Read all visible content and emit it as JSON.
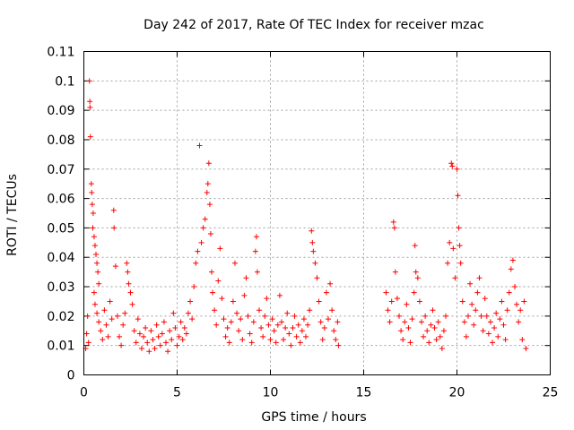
{
  "chart_data": {
    "type": "scatter",
    "title": "Day 242 of 2017, Rate Of TEC Index for receiver mzac",
    "xlabel": "GPS time / hours",
    "ylabel": "ROTI / TECUs",
    "xlim": [
      0,
      25
    ],
    "ylim": [
      0,
      0.11
    ],
    "xticks": [
      0,
      5,
      10,
      15,
      20,
      25
    ],
    "xtick_labels": [
      "0",
      "5",
      "10",
      "15",
      "20",
      "25"
    ],
    "yticks": [
      0,
      0.01,
      0.02,
      0.03,
      0.04,
      0.05,
      0.06,
      0.07,
      0.08,
      0.09,
      0.1,
      0.11
    ],
    "ytick_labels": [
      "0",
      "0.01",
      "0.02",
      "0.03",
      "0.04",
      "0.05",
      "0.06",
      "0.07",
      "0.08",
      "0.09",
      "0.1",
      "0.11"
    ],
    "grid": true,
    "marker": "+",
    "color": "#ff0000",
    "series": [
      {
        "name": "ROTI",
        "points": [
          [
            0.1,
            0.009
          ],
          [
            0.15,
            0.014
          ],
          [
            0.2,
            0.02
          ],
          [
            0.25,
            0.011
          ],
          [
            0.3,
            0.1
          ],
          [
            0.32,
            0.093
          ],
          [
            0.33,
            0.091
          ],
          [
            0.35,
            0.081
          ],
          [
            0.4,
            0.065
          ],
          [
            0.42,
            0.062
          ],
          [
            0.45,
            0.058
          ],
          [
            0.5,
            0.055
          ],
          [
            0.48,
            0.05
          ],
          [
            0.55,
            0.047
          ],
          [
            0.6,
            0.044
          ],
          [
            0.65,
            0.041
          ],
          [
            0.7,
            0.038
          ],
          [
            0.75,
            0.035
          ],
          [
            0.8,
            0.031
          ],
          [
            0.55,
            0.028
          ],
          [
            0.6,
            0.024
          ],
          [
            0.7,
            0.021
          ],
          [
            0.8,
            0.018
          ],
          [
            0.9,
            0.015
          ],
          [
            1.0,
            0.012
          ],
          [
            1.1,
            0.022
          ],
          [
            1.2,
            0.017
          ],
          [
            1.3,
            0.013
          ],
          [
            1.4,
            0.025
          ],
          [
            1.5,
            0.019
          ],
          [
            1.6,
            0.056
          ],
          [
            1.62,
            0.05
          ],
          [
            1.7,
            0.037
          ],
          [
            1.8,
            0.02
          ],
          [
            1.9,
            0.013
          ],
          [
            2.0,
            0.01
          ],
          [
            2.1,
            0.017
          ],
          [
            2.2,
            0.021
          ],
          [
            2.3,
            0.038
          ],
          [
            2.35,
            0.035
          ],
          [
            2.4,
            0.031
          ],
          [
            2.5,
            0.028
          ],
          [
            2.6,
            0.024
          ],
          [
            2.7,
            0.015
          ],
          [
            2.8,
            0.011
          ],
          [
            2.9,
            0.019
          ],
          [
            3.0,
            0.014
          ],
          [
            3.1,
            0.009
          ],
          [
            3.2,
            0.013
          ],
          [
            3.3,
            0.016
          ],
          [
            3.4,
            0.011
          ],
          [
            3.5,
            0.008
          ],
          [
            3.6,
            0.015
          ],
          [
            3.7,
            0.012
          ],
          [
            3.8,
            0.009
          ],
          [
            3.9,
            0.017
          ],
          [
            4.0,
            0.013
          ],
          [
            4.1,
            0.01
          ],
          [
            4.2,
            0.014
          ],
          [
            4.3,
            0.018
          ],
          [
            4.4,
            0.011
          ],
          [
            4.5,
            0.008
          ],
          [
            4.6,
            0.015
          ],
          [
            4.7,
            0.012
          ],
          [
            4.8,
            0.021
          ],
          [
            4.9,
            0.016
          ],
          [
            5.0,
            0.01
          ],
          [
            5.1,
            0.013
          ],
          [
            5.2,
            0.018
          ],
          [
            5.3,
            0.012
          ],
          [
            5.4,
            0.016
          ],
          [
            5.5,
            0.014
          ],
          [
            5.6,
            0.021
          ],
          [
            5.7,
            0.025
          ],
          [
            5.8,
            0.019
          ],
          [
            5.9,
            0.03
          ],
          [
            6.0,
            0.038
          ],
          [
            6.1,
            0.042
          ],
          [
            6.2,
            0.078
          ],
          [
            6.3,
            0.045
          ],
          [
            6.4,
            0.05
          ],
          [
            6.5,
            0.053
          ],
          [
            6.6,
            0.062
          ],
          [
            6.65,
            0.065
          ],
          [
            6.7,
            0.072
          ],
          [
            6.75,
            0.058
          ],
          [
            6.8,
            0.048
          ],
          [
            6.85,
            0.035
          ],
          [
            6.9,
            0.028
          ],
          [
            7.0,
            0.022
          ],
          [
            7.1,
            0.017
          ],
          [
            7.2,
            0.032
          ],
          [
            7.3,
            0.043
          ],
          [
            7.4,
            0.026
          ],
          [
            7.5,
            0.019
          ],
          [
            7.6,
            0.013
          ],
          [
            7.7,
            0.016
          ],
          [
            7.8,
            0.011
          ],
          [
            7.9,
            0.018
          ],
          [
            8.0,
            0.025
          ],
          [
            8.1,
            0.038
          ],
          [
            8.2,
            0.021
          ],
          [
            8.3,
            0.015
          ],
          [
            8.4,
            0.019
          ],
          [
            8.5,
            0.012
          ],
          [
            8.6,
            0.027
          ],
          [
            8.7,
            0.033
          ],
          [
            8.8,
            0.02
          ],
          [
            8.9,
            0.014
          ],
          [
            9.0,
            0.011
          ],
          [
            9.1,
            0.018
          ],
          [
            9.2,
            0.042
          ],
          [
            9.25,
            0.047
          ],
          [
            9.3,
            0.035
          ],
          [
            9.4,
            0.022
          ],
          [
            9.5,
            0.016
          ],
          [
            9.6,
            0.013
          ],
          [
            9.7,
            0.02
          ],
          [
            9.8,
            0.026
          ],
          [
            9.9,
            0.017
          ],
          [
            10.0,
            0.012
          ],
          [
            10.1,
            0.019
          ],
          [
            10.2,
            0.015
          ],
          [
            10.3,
            0.011
          ],
          [
            10.4,
            0.017
          ],
          [
            10.5,
            0.027
          ],
          [
            10.6,
            0.018
          ],
          [
            10.7,
            0.012
          ],
          [
            10.8,
            0.016
          ],
          [
            10.9,
            0.021
          ],
          [
            11.0,
            0.014
          ],
          [
            11.1,
            0.01
          ],
          [
            11.2,
            0.016
          ],
          [
            11.3,
            0.02
          ],
          [
            11.4,
            0.013
          ],
          [
            11.5,
            0.017
          ],
          [
            11.6,
            0.011
          ],
          [
            11.7,
            0.015
          ],
          [
            11.8,
            0.019
          ],
          [
            11.9,
            0.013
          ],
          [
            12.0,
            0.017
          ],
          [
            12.1,
            0.022
          ],
          [
            12.2,
            0.049
          ],
          [
            12.25,
            0.045
          ],
          [
            12.3,
            0.042
          ],
          [
            12.4,
            0.038
          ],
          [
            12.5,
            0.033
          ],
          [
            12.6,
            0.025
          ],
          [
            12.7,
            0.018
          ],
          [
            12.8,
            0.012
          ],
          [
            12.9,
            0.016
          ],
          [
            13.0,
            0.028
          ],
          [
            13.1,
            0.019
          ],
          [
            13.2,
            0.031
          ],
          [
            13.3,
            0.022
          ],
          [
            13.4,
            0.015
          ],
          [
            13.5,
            0.012
          ],
          [
            13.6,
            0.018
          ],
          [
            13.65,
            0.01
          ],
          [
            16.2,
            0.028
          ],
          [
            16.3,
            0.022
          ],
          [
            16.4,
            0.018
          ],
          [
            16.5,
            0.025
          ],
          [
            16.6,
            0.052
          ],
          [
            16.65,
            0.05
          ],
          [
            16.7,
            0.035
          ],
          [
            16.8,
            0.026
          ],
          [
            16.9,
            0.02
          ],
          [
            17.0,
            0.015
          ],
          [
            17.1,
            0.012
          ],
          [
            17.2,
            0.018
          ],
          [
            17.3,
            0.024
          ],
          [
            17.4,
            0.016
          ],
          [
            17.5,
            0.011
          ],
          [
            17.6,
            0.019
          ],
          [
            17.7,
            0.028
          ],
          [
            17.75,
            0.044
          ],
          [
            17.8,
            0.035
          ],
          [
            17.9,
            0.033
          ],
          [
            18.0,
            0.025
          ],
          [
            18.1,
            0.018
          ],
          [
            18.2,
            0.013
          ],
          [
            18.3,
            0.02
          ],
          [
            18.4,
            0.015
          ],
          [
            18.5,
            0.011
          ],
          [
            18.6,
            0.017
          ],
          [
            18.7,
            0.022
          ],
          [
            18.8,
            0.016
          ],
          [
            18.9,
            0.012
          ],
          [
            19.0,
            0.018
          ],
          [
            19.1,
            0.013
          ],
          [
            19.2,
            0.009
          ],
          [
            19.3,
            0.015
          ],
          [
            19.4,
            0.02
          ],
          [
            19.5,
            0.038
          ],
          [
            19.6,
            0.045
          ],
          [
            19.7,
            0.072
          ],
          [
            19.75,
            0.071
          ],
          [
            19.8,
            0.043
          ],
          [
            19.9,
            0.033
          ],
          [
            20.0,
            0.07
          ],
          [
            20.05,
            0.061
          ],
          [
            20.1,
            0.05
          ],
          [
            20.15,
            0.044
          ],
          [
            20.2,
            0.038
          ],
          [
            20.3,
            0.025
          ],
          [
            20.4,
            0.018
          ],
          [
            20.5,
            0.013
          ],
          [
            20.6,
            0.02
          ],
          [
            20.7,
            0.031
          ],
          [
            20.8,
            0.024
          ],
          [
            20.9,
            0.017
          ],
          [
            21.0,
            0.022
          ],
          [
            21.1,
            0.028
          ],
          [
            21.2,
            0.033
          ],
          [
            21.3,
            0.02
          ],
          [
            21.4,
            0.015
          ],
          [
            21.5,
            0.026
          ],
          [
            21.6,
            0.02
          ],
          [
            21.7,
            0.014
          ],
          [
            21.8,
            0.018
          ],
          [
            21.9,
            0.011
          ],
          [
            22.0,
            0.016
          ],
          [
            22.1,
            0.021
          ],
          [
            22.2,
            0.013
          ],
          [
            22.3,
            0.019
          ],
          [
            22.4,
            0.025
          ],
          [
            22.5,
            0.017
          ],
          [
            22.6,
            0.012
          ],
          [
            22.7,
            0.022
          ],
          [
            22.8,
            0.028
          ],
          [
            22.9,
            0.036
          ],
          [
            23.0,
            0.039
          ],
          [
            23.1,
            0.03
          ],
          [
            23.2,
            0.024
          ],
          [
            23.3,
            0.018
          ],
          [
            23.4,
            0.022
          ],
          [
            23.5,
            0.012
          ],
          [
            23.6,
            0.025
          ],
          [
            23.7,
            0.009
          ]
        ]
      }
    ]
  }
}
